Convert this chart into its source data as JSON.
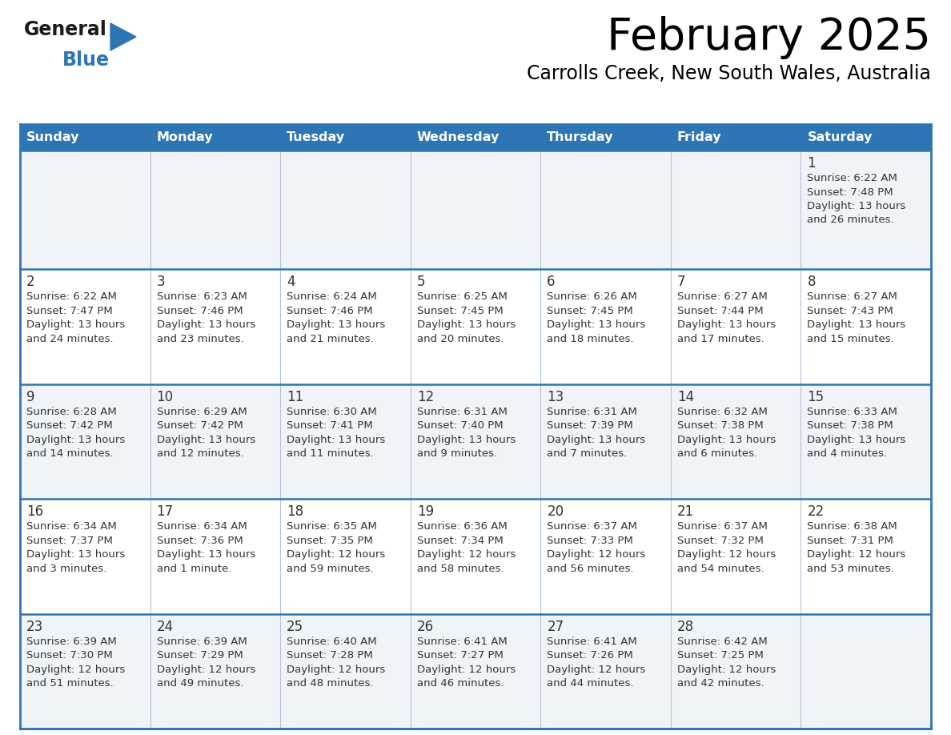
{
  "title": "February 2025",
  "subtitle": "Carrolls Creek, New South Wales, Australia",
  "header_bg": "#2E75B6",
  "header_text": "#FFFFFF",
  "cell_bg_odd": "#F0F4F8",
  "cell_bg_even": "#FFFFFF",
  "border_color": "#2E75B6",
  "grid_line_color": "#A0B4C8",
  "day_names": [
    "Sunday",
    "Monday",
    "Tuesday",
    "Wednesday",
    "Thursday",
    "Friday",
    "Saturday"
  ],
  "title_color": "#000000",
  "subtitle_color": "#000000",
  "day_number_color": "#333333",
  "cell_text_color": "#333333",
  "logo_general_color": "#1a1a1a",
  "logo_blue_color": "#2E75B6",
  "weeks": [
    [
      {
        "day": null,
        "info": null
      },
      {
        "day": null,
        "info": null
      },
      {
        "day": null,
        "info": null
      },
      {
        "day": null,
        "info": null
      },
      {
        "day": null,
        "info": null
      },
      {
        "day": null,
        "info": null
      },
      {
        "day": 1,
        "info": "Sunrise: 6:22 AM\nSunset: 7:48 PM\nDaylight: 13 hours\nand 26 minutes."
      }
    ],
    [
      {
        "day": 2,
        "info": "Sunrise: 6:22 AM\nSunset: 7:47 PM\nDaylight: 13 hours\nand 24 minutes."
      },
      {
        "day": 3,
        "info": "Sunrise: 6:23 AM\nSunset: 7:46 PM\nDaylight: 13 hours\nand 23 minutes."
      },
      {
        "day": 4,
        "info": "Sunrise: 6:24 AM\nSunset: 7:46 PM\nDaylight: 13 hours\nand 21 minutes."
      },
      {
        "day": 5,
        "info": "Sunrise: 6:25 AM\nSunset: 7:45 PM\nDaylight: 13 hours\nand 20 minutes."
      },
      {
        "day": 6,
        "info": "Sunrise: 6:26 AM\nSunset: 7:45 PM\nDaylight: 13 hours\nand 18 minutes."
      },
      {
        "day": 7,
        "info": "Sunrise: 6:27 AM\nSunset: 7:44 PM\nDaylight: 13 hours\nand 17 minutes."
      },
      {
        "day": 8,
        "info": "Sunrise: 6:27 AM\nSunset: 7:43 PM\nDaylight: 13 hours\nand 15 minutes."
      }
    ],
    [
      {
        "day": 9,
        "info": "Sunrise: 6:28 AM\nSunset: 7:42 PM\nDaylight: 13 hours\nand 14 minutes."
      },
      {
        "day": 10,
        "info": "Sunrise: 6:29 AM\nSunset: 7:42 PM\nDaylight: 13 hours\nand 12 minutes."
      },
      {
        "day": 11,
        "info": "Sunrise: 6:30 AM\nSunset: 7:41 PM\nDaylight: 13 hours\nand 11 minutes."
      },
      {
        "day": 12,
        "info": "Sunrise: 6:31 AM\nSunset: 7:40 PM\nDaylight: 13 hours\nand 9 minutes."
      },
      {
        "day": 13,
        "info": "Sunrise: 6:31 AM\nSunset: 7:39 PM\nDaylight: 13 hours\nand 7 minutes."
      },
      {
        "day": 14,
        "info": "Sunrise: 6:32 AM\nSunset: 7:38 PM\nDaylight: 13 hours\nand 6 minutes."
      },
      {
        "day": 15,
        "info": "Sunrise: 6:33 AM\nSunset: 7:38 PM\nDaylight: 13 hours\nand 4 minutes."
      }
    ],
    [
      {
        "day": 16,
        "info": "Sunrise: 6:34 AM\nSunset: 7:37 PM\nDaylight: 13 hours\nand 3 minutes."
      },
      {
        "day": 17,
        "info": "Sunrise: 6:34 AM\nSunset: 7:36 PM\nDaylight: 13 hours\nand 1 minute."
      },
      {
        "day": 18,
        "info": "Sunrise: 6:35 AM\nSunset: 7:35 PM\nDaylight: 12 hours\nand 59 minutes."
      },
      {
        "day": 19,
        "info": "Sunrise: 6:36 AM\nSunset: 7:34 PM\nDaylight: 12 hours\nand 58 minutes."
      },
      {
        "day": 20,
        "info": "Sunrise: 6:37 AM\nSunset: 7:33 PM\nDaylight: 12 hours\nand 56 minutes."
      },
      {
        "day": 21,
        "info": "Sunrise: 6:37 AM\nSunset: 7:32 PM\nDaylight: 12 hours\nand 54 minutes."
      },
      {
        "day": 22,
        "info": "Sunrise: 6:38 AM\nSunset: 7:31 PM\nDaylight: 12 hours\nand 53 minutes."
      }
    ],
    [
      {
        "day": 23,
        "info": "Sunrise: 6:39 AM\nSunset: 7:30 PM\nDaylight: 12 hours\nand 51 minutes."
      },
      {
        "day": 24,
        "info": "Sunrise: 6:39 AM\nSunset: 7:29 PM\nDaylight: 12 hours\nand 49 minutes."
      },
      {
        "day": 25,
        "info": "Sunrise: 6:40 AM\nSunset: 7:28 PM\nDaylight: 12 hours\nand 48 minutes."
      },
      {
        "day": 26,
        "info": "Sunrise: 6:41 AM\nSunset: 7:27 PM\nDaylight: 12 hours\nand 46 minutes."
      },
      {
        "day": 27,
        "info": "Sunrise: 6:41 AM\nSunset: 7:26 PM\nDaylight: 12 hours\nand 44 minutes."
      },
      {
        "day": 28,
        "info": "Sunrise: 6:42 AM\nSunset: 7:25 PM\nDaylight: 12 hours\nand 42 minutes."
      },
      {
        "day": null,
        "info": null
      }
    ]
  ]
}
